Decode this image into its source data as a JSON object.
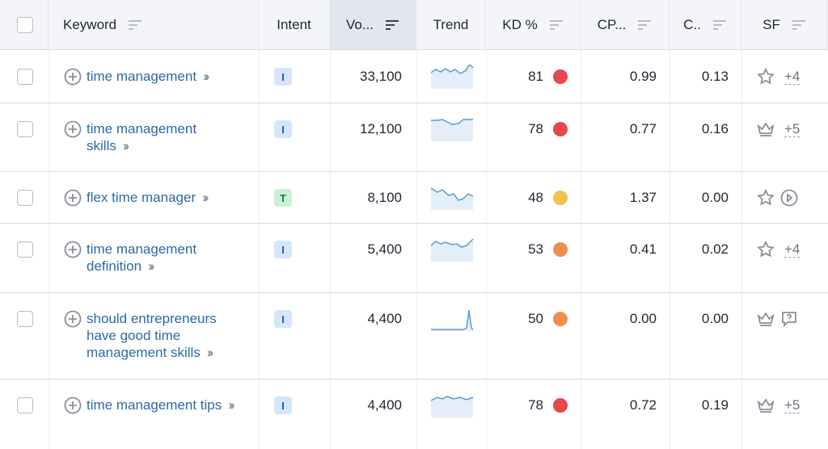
{
  "table": {
    "headers": [
      "Keyword",
      "Intent",
      "Vo...",
      "Trend",
      "KD %",
      "CP...",
      "C..",
      "SF"
    ],
    "rows": [
      {
        "keyword": "time management",
        "intent": "I",
        "volume": "33,100",
        "kd": 81,
        "kd_color": "#e5484d",
        "cpc": "0.99",
        "com": "0.13",
        "sf_icon": "star",
        "sf_extra": "+4"
      },
      {
        "keyword": "time management skills",
        "intent": "I",
        "volume": "12,100",
        "kd": 78,
        "kd_color": "#e5484d",
        "cpc": "0.77",
        "com": "0.16",
        "sf_icon": "crown",
        "sf_extra": "+5"
      },
      {
        "keyword": "flex time manager",
        "intent": "T",
        "volume": "8,100",
        "kd": 48,
        "kd_color": "#f2c14e",
        "cpc": "1.37",
        "com": "0.00",
        "sf_icon": "star",
        "sf_extra_icon": "play"
      },
      {
        "keyword": "time management definition",
        "intent": "I",
        "volume": "5,400",
        "kd": 53,
        "kd_color": "#ee8f4f",
        "cpc": "0.41",
        "com": "0.02",
        "sf_icon": "star",
        "sf_extra": "+4"
      },
      {
        "keyword": "should entrepreneurs have good time management skills",
        "intent": "I",
        "volume": "4,400",
        "kd": 50,
        "kd_color": "#ee8f4f",
        "cpc": "0.00",
        "com": "0.00",
        "sf_icon": "crown",
        "sf_extra_icon": "question"
      },
      {
        "keyword": "time management tips",
        "intent": "I",
        "volume": "4,400",
        "kd": 78,
        "kd_color": "#e5484d",
        "cpc": "0.72",
        "com": "0.19",
        "sf_icon": "crown",
        "sf_extra": "+5"
      }
    ]
  }
}
